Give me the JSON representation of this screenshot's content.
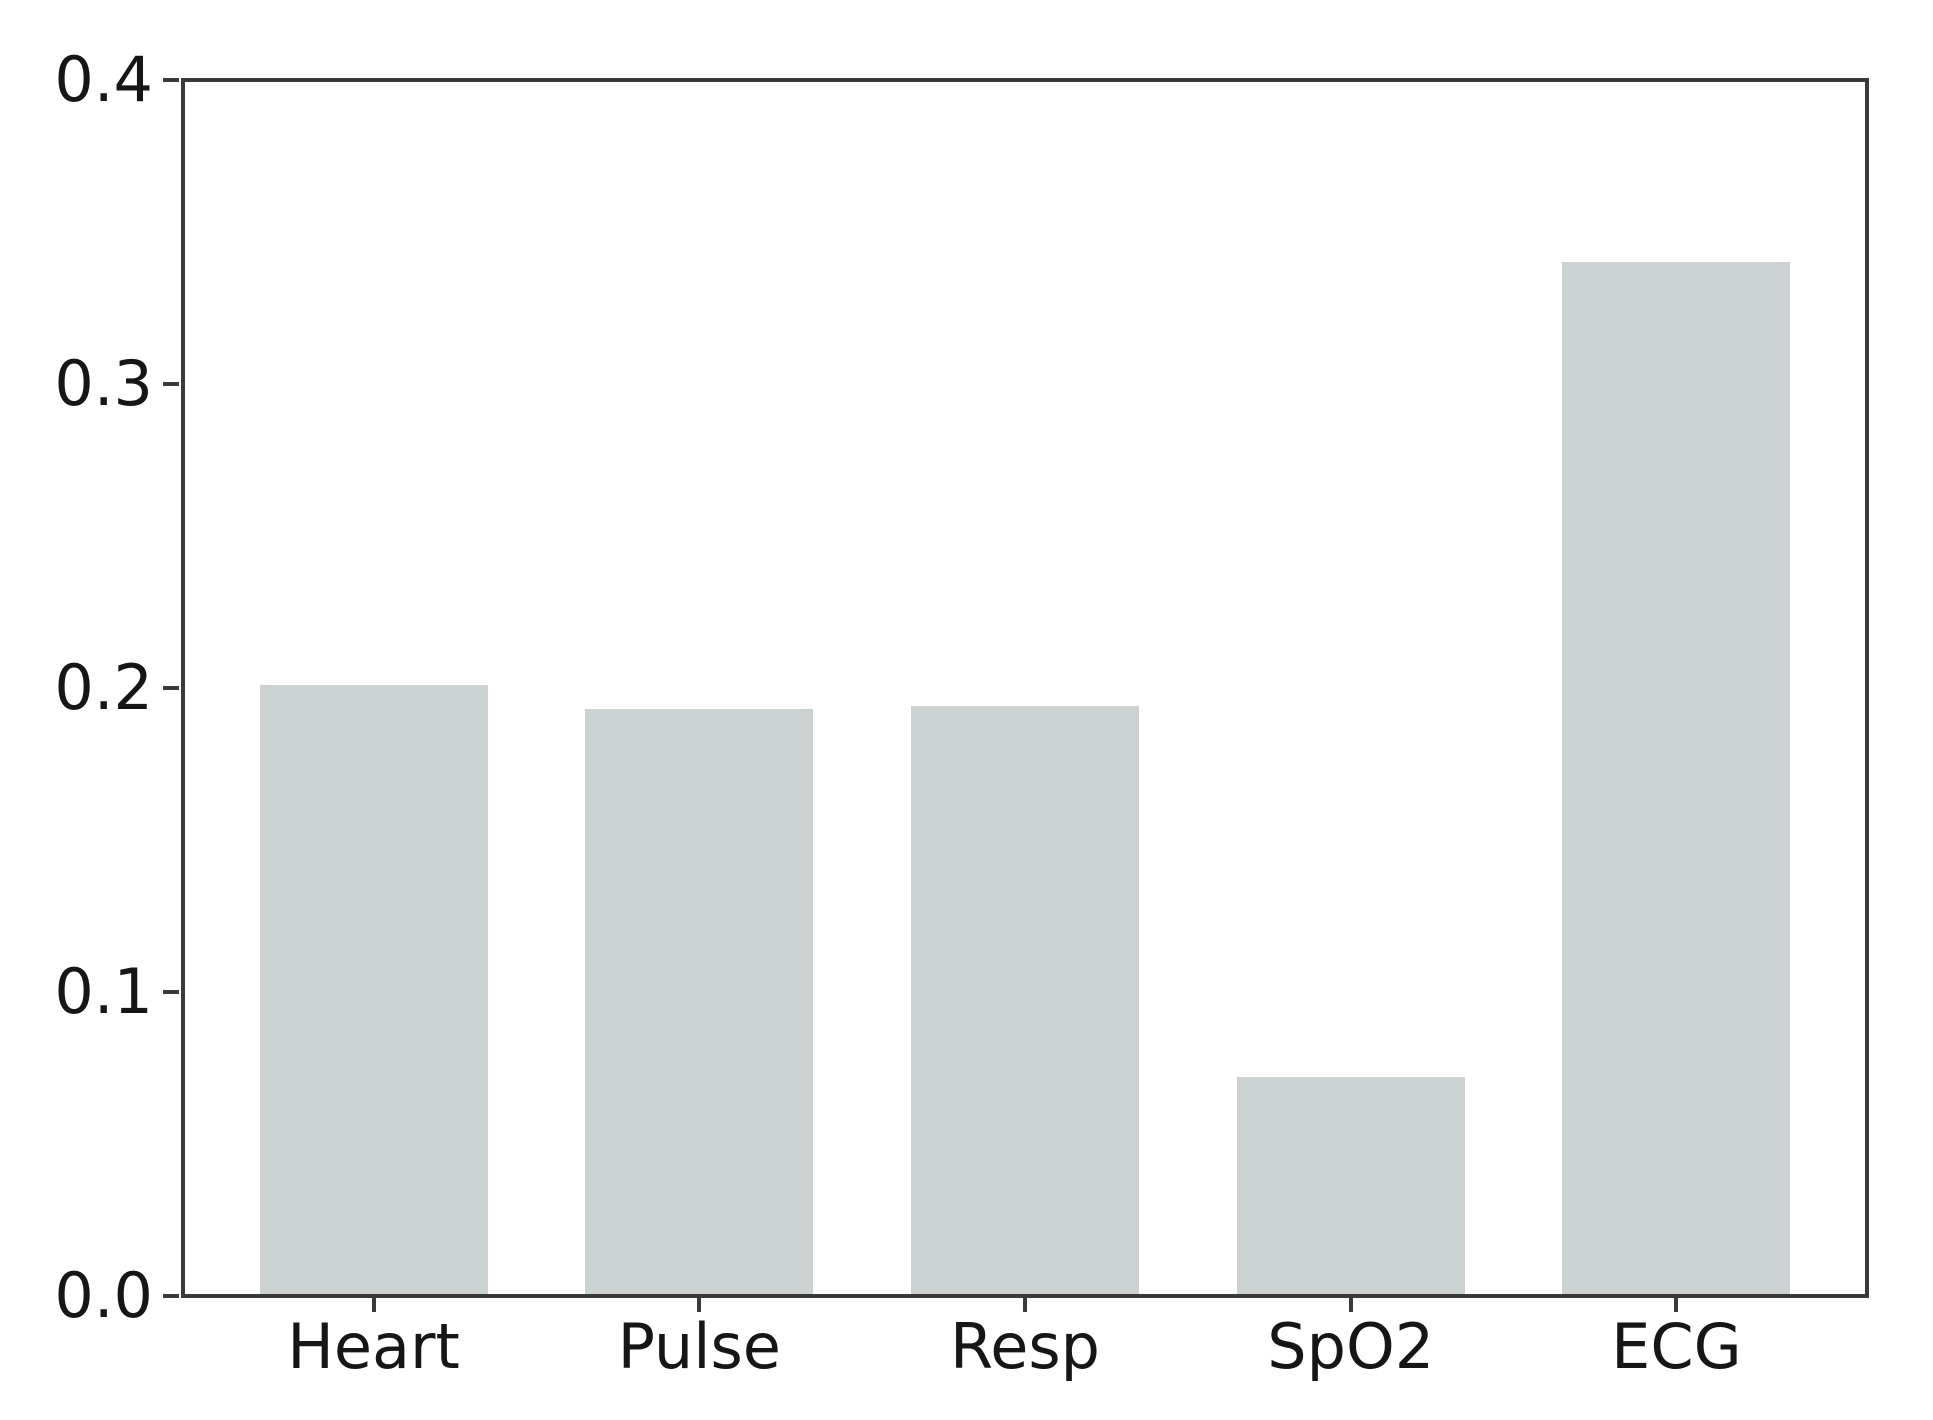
{
  "chart_data": {
    "type": "bar",
    "title": "",
    "xlabel": "",
    "ylabel": "",
    "categories": [
      "Heart",
      "Pulse",
      "Resp",
      "SpO2",
      "ECG"
    ],
    "values": [
      0.201,
      0.193,
      0.194,
      0.072,
      0.34
    ],
    "ylim": [
      0.0,
      0.4
    ],
    "yticks": [
      0.0,
      0.1,
      0.2,
      0.3,
      0.4
    ],
    "ytick_labels": [
      "0.0",
      "0.1",
      "0.2",
      "0.3",
      "0.4"
    ],
    "grid": false,
    "legend": "none",
    "bar_color": "#ccd1d1",
    "axis_color": "#3a3a3a",
    "text_color": "#161616",
    "background_color": "#ffffff"
  }
}
